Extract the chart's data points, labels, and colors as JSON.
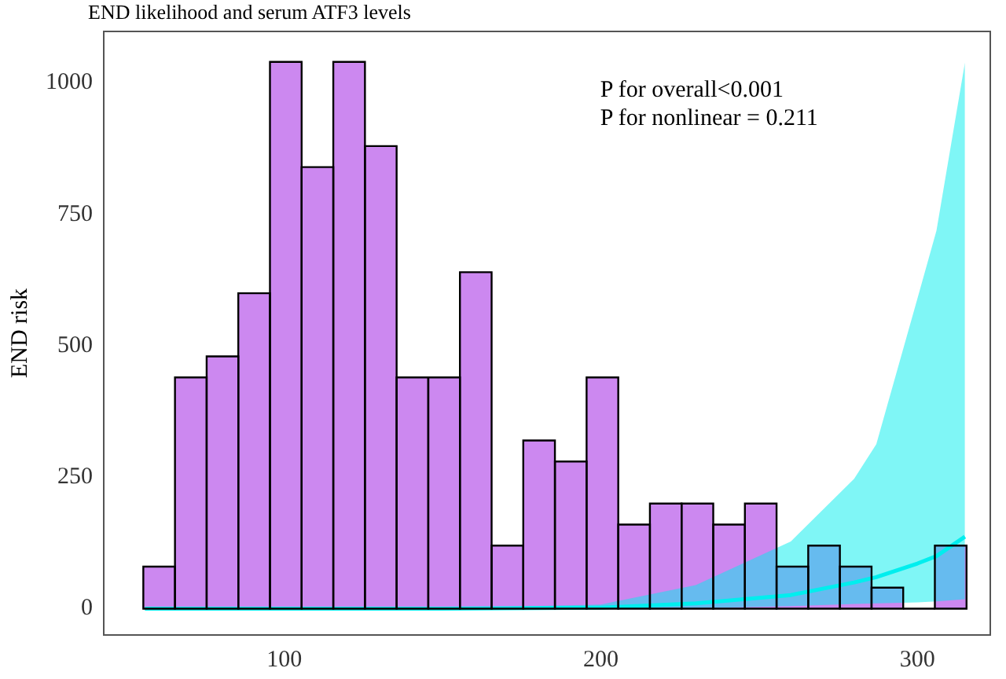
{
  "chart_data": {
    "type": "histogram",
    "title": "END likelihood and serum ATF3 levels",
    "ylabel": "END risk",
    "annotations": [
      "P for overall<0.001\nP for nonlinear = 0.211"
    ],
    "xlim": [
      43,
      323
    ],
    "xticks": [
      100,
      200,
      300
    ],
    "ylim": [
      -50,
      1098
    ],
    "yticks": [
      0,
      250,
      500,
      750,
      1000
    ],
    "grid": false,
    "color": "#cc88f0",
    "bins": [
      55.5,
      65.5,
      75.5,
      85.5,
      95.5,
      105.5,
      115.5,
      125.5,
      135.5,
      145.5,
      155.5,
      165.5,
      175.5,
      185.5,
      195.5,
      205.5,
      215.5,
      225.5,
      235.5,
      245.5,
      255.5,
      265.5,
      275.5,
      285.5,
      295.5,
      305.5,
      315.5
    ],
    "values": [
      80,
      440,
      480,
      600,
      1040,
      840,
      1040,
      880,
      440,
      440,
      640,
      120,
      320,
      280,
      440,
      160,
      200,
      200,
      160,
      200,
      80,
      120,
      80,
      40,
      0,
      120
    ],
    "series": [
      {
        "type": "line",
        "color": "#00eeee",
        "x": [
          56,
          100,
          150,
          200,
          230,
          260,
          280,
          287,
          300,
          306,
          315
        ],
        "values": [
          0,
          0,
          0,
          2,
          10,
          26,
          50,
          60,
          86,
          100,
          137
        ],
        "lower": [
          0,
          0,
          0,
          0,
          1,
          5,
          9,
          10,
          12,
          14,
          18
        ],
        "upper": [
          0,
          0,
          1,
          8,
          45,
          128,
          247,
          313,
          590,
          719,
          1039
        ]
      }
    ]
  }
}
